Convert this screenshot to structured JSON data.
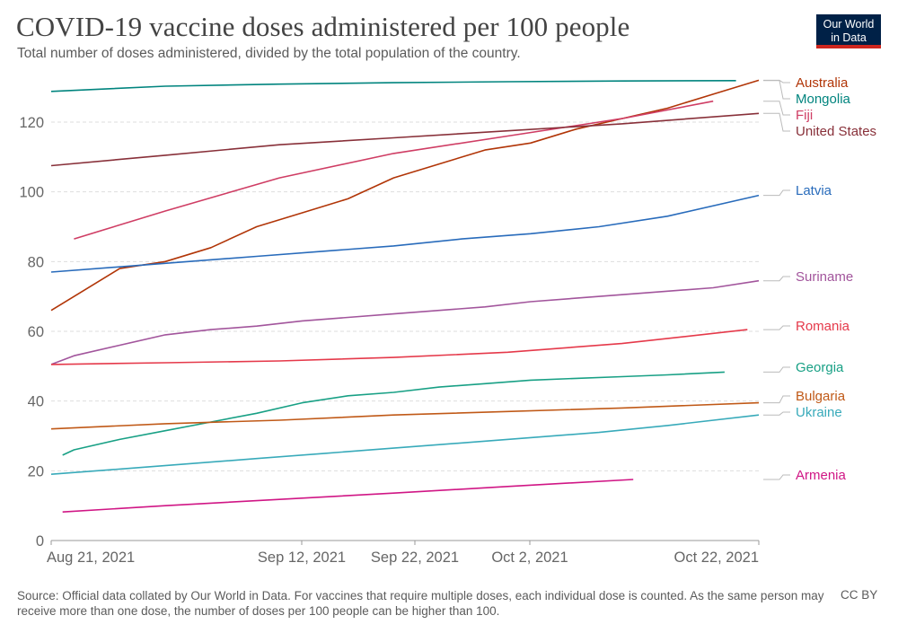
{
  "header": {
    "title": "COVID-19 vaccine doses administered per 100 people",
    "subtitle": "Total number of doses administered, divided by the total population of the country."
  },
  "logo": {
    "line1": "Our World",
    "line2": "in Data",
    "bg_color": "#002147",
    "accent_color": "#ce261e"
  },
  "footer": {
    "source": "Source: Official data collated by Our World in Data. For vaccines that require multiple doses, each individual dose is counted. As the same person may receive more than one dose, the number of doses per 100 people can be higher than 100.",
    "license": "CC BY"
  },
  "chart_data": {
    "type": "line",
    "title": "COVID-19 vaccine doses administered per 100 people",
    "xlabel": "",
    "ylabel": "",
    "x_range_days": [
      0,
      62
    ],
    "x_start_date": "2021-08-19",
    "ylim": [
      0,
      132
    ],
    "yticks": [
      0,
      20,
      40,
      60,
      80,
      100,
      120
    ],
    "xticks": [
      {
        "day": 2,
        "label": "Aug 21, 2021"
      },
      {
        "day": 24,
        "label": "Sep 12, 2021"
      },
      {
        "day": 34,
        "label": "Sep 22, 2021"
      },
      {
        "day": 44,
        "label": "Oct 2, 2021"
      },
      {
        "day": 64,
        "label": "Oct 22, 2021"
      }
    ],
    "grid": true,
    "legend": "right",
    "series": [
      {
        "name": "Australia",
        "color": "#b13507",
        "x": [
          0,
          2,
          6,
          10,
          14,
          18,
          22,
          26,
          30,
          34,
          38,
          42,
          46,
          50,
          54,
          58,
          62
        ],
        "y": [
          66,
          70,
          78,
          80,
          84,
          90,
          94,
          98,
          104,
          108,
          112,
          114,
          118,
          121,
          124,
          128,
          132
        ]
      },
      {
        "name": "Mongolia",
        "color": "#00847e",
        "x": [
          0,
          10,
          20,
          30,
          40,
          50,
          60
        ],
        "y": [
          128.8,
          130.3,
          130.9,
          131.3,
          131.6,
          131.8,
          131.9
        ]
      },
      {
        "name": "Fiji",
        "color": "#cf3d64",
        "x": [
          2,
          10,
          20,
          30,
          40,
          50,
          58
        ],
        "y": [
          86.5,
          94.5,
          104,
          111,
          116,
          121,
          126
        ]
      },
      {
        "name": "United States",
        "color": "#883039",
        "x": [
          0,
          10,
          20,
          30,
          40,
          50,
          62
        ],
        "y": [
          107.5,
          110.5,
          113.5,
          115.5,
          117.5,
          119.5,
          122.5
        ]
      },
      {
        "name": "Latvia",
        "color": "#286bbb",
        "x": [
          0,
          6,
          12,
          18,
          24,
          30,
          36,
          42,
          48,
          54,
          62
        ],
        "y": [
          77,
          78.5,
          80,
          81.5,
          83,
          84.5,
          86.5,
          88,
          90,
          93,
          99
        ]
      },
      {
        "name": "Suriname",
        "color": "#a2559c",
        "x": [
          0,
          2,
          6,
          10,
          14,
          18,
          22,
          26,
          30,
          34,
          38,
          42,
          46,
          50,
          54,
          58,
          62
        ],
        "y": [
          50.5,
          53,
          56,
          59,
          60.5,
          61.5,
          63,
          64,
          65,
          66,
          67,
          68.5,
          69.5,
          70.5,
          71.5,
          72.5,
          74.5
        ]
      },
      {
        "name": "Romania",
        "color": "#e5394a",
        "x": [
          0,
          10,
          20,
          30,
          40,
          50,
          61
        ],
        "y": [
          50.5,
          51,
          51.5,
          52.5,
          54,
          56.5,
          60.5
        ]
      },
      {
        "name": "Georgia",
        "color": "#18a085",
        "x": [
          1,
          2,
          6,
          10,
          14,
          18,
          22,
          26,
          30,
          34,
          38,
          42,
          46,
          50,
          54,
          59
        ],
        "y": [
          24.5,
          26,
          29,
          31.5,
          34,
          36.5,
          39.5,
          41.5,
          42.5,
          44,
          45,
          46,
          46.5,
          47,
          47.5,
          48.3
        ]
      },
      {
        "name": "Bulgaria",
        "color": "#c05917",
        "x": [
          0,
          10,
          20,
          30,
          40,
          50,
          62
        ],
        "y": [
          32,
          33.5,
          34.5,
          36,
          37,
          38,
          39.5
        ]
      },
      {
        "name": "Ukraine",
        "color": "#38aaba",
        "x": [
          0,
          6,
          12,
          18,
          24,
          30,
          36,
          42,
          48,
          54,
          62
        ],
        "y": [
          19,
          20.5,
          22,
          23.5,
          25,
          26.5,
          28,
          29.5,
          31,
          33,
          36
        ]
      },
      {
        "name": "Armenia",
        "color": "#d01685",
        "x": [
          1,
          10,
          20,
          30,
          40,
          51
        ],
        "y": [
          8.2,
          10,
          11.8,
          13.6,
          15.5,
          17.5
        ]
      }
    ],
    "legend_labels": [
      {
        "name": "Australia",
        "color": "#b13507"
      },
      {
        "name": "Mongolia",
        "color": "#00847e"
      },
      {
        "name": "Fiji",
        "color": "#cf3d64"
      },
      {
        "name": "United States",
        "color": "#883039"
      },
      {
        "name": "Latvia",
        "color": "#286bbb"
      },
      {
        "name": "Suriname",
        "color": "#a2559c"
      },
      {
        "name": "Romania",
        "color": "#e5394a"
      },
      {
        "name": "Georgia",
        "color": "#18a085"
      },
      {
        "name": "Bulgaria",
        "color": "#c05917"
      },
      {
        "name": "Ukraine",
        "color": "#38aaba"
      },
      {
        "name": "Armenia",
        "color": "#d01685"
      }
    ]
  }
}
